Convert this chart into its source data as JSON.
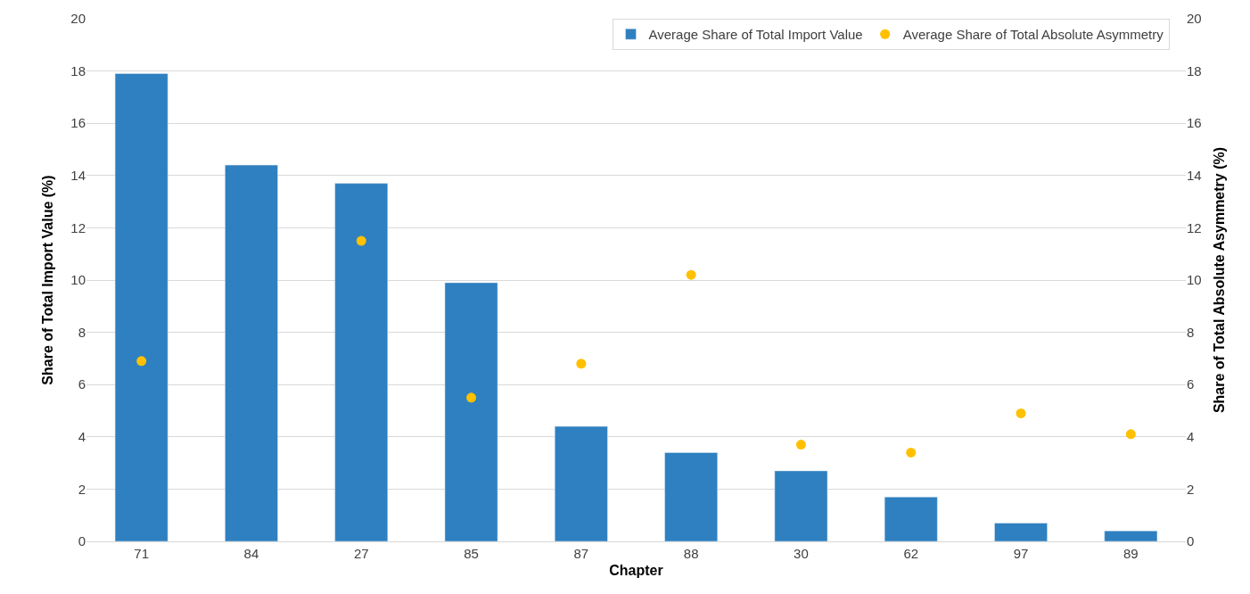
{
  "chart_data": {
    "type": "bar",
    "xlabel": "Chapter",
    "ylabel": "Share of Total Import Value (%)",
    "y2label": "Share of Total Absolute Asymmetry (%)",
    "categories": [
      "71",
      "84",
      "27",
      "85",
      "87",
      "88",
      "30",
      "62",
      "97",
      "89"
    ],
    "series": [
      {
        "name": "Average Share of Total Import Value",
        "color": "#2e80c0",
        "values": [
          17.9,
          14.4,
          13.7,
          9.9,
          4.4,
          3.4,
          2.7,
          1.7,
          0.7,
          0.4
        ]
      },
      {
        "name": "Average Share of Total Absolute Asymmetry",
        "type": "scatter",
        "axis": "y2",
        "marker": "circle",
        "color": "#ffc000",
        "values": [
          6.9,
          null,
          11.5,
          5.5,
          6.8,
          10.2,
          3.7,
          3.4,
          4.9,
          4.1
        ]
      }
    ],
    "ylim": [
      0,
      20
    ],
    "yticks": [
      0,
      2,
      4,
      6,
      8,
      10,
      12,
      14,
      16,
      18,
      20
    ],
    "y2lim": [
      0,
      20
    ],
    "y2ticks": [
      0,
      2,
      4,
      6,
      8,
      10,
      12,
      14,
      16,
      18,
      20
    ],
    "grid": "y",
    "legend": "top right"
  }
}
